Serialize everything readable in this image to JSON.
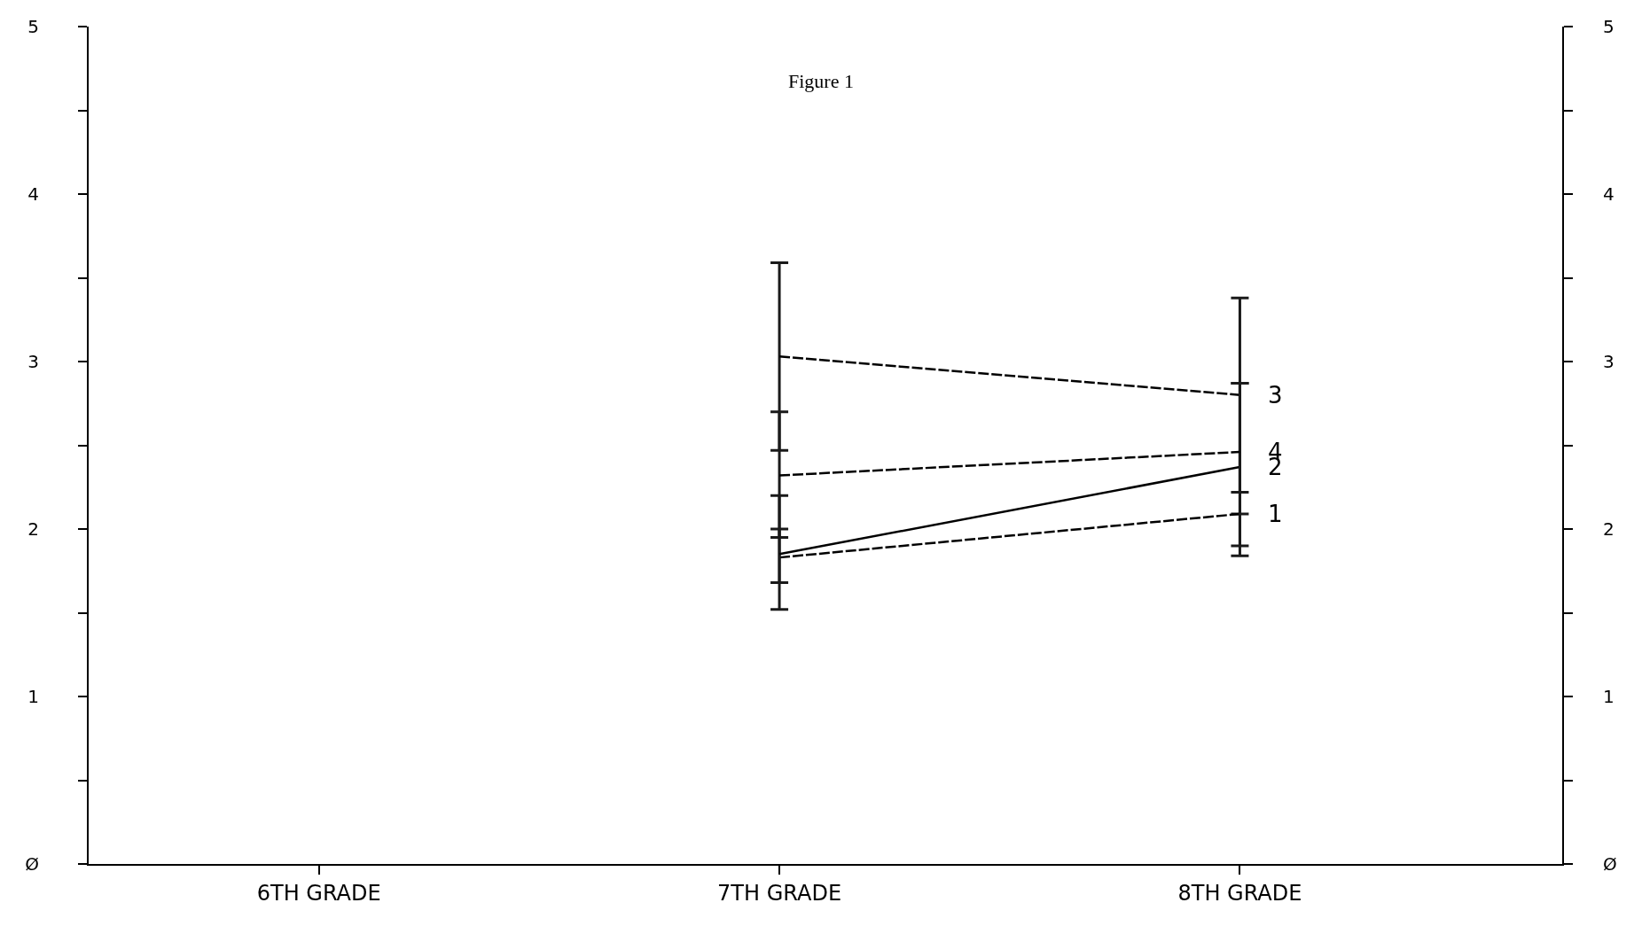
{
  "chart_data": {
    "type": "line",
    "title": "Figure 1",
    "categories": [
      "6TH GRADE",
      "7TH GRADE",
      "8TH GRADE"
    ],
    "series": [
      {
        "name": "1",
        "color": "#000000",
        "line_style": "dashed",
        "values": [
          null,
          1.83,
          2.09
        ],
        "errors": [
          null,
          [
            1.68,
            2.0
          ],
          null
        ]
      },
      {
        "name": "2",
        "color": "#000000",
        "line_style": "solid",
        "values": [
          null,
          1.85,
          2.37
        ],
        "errors": [
          null,
          [
            1.52,
            2.2
          ],
          [
            1.84,
            2.87
          ]
        ]
      },
      {
        "name": "3",
        "color": "#000000",
        "line_style": "dashed",
        "values": [
          null,
          3.03,
          2.8
        ],
        "errors": [
          null,
          [
            2.47,
            3.59
          ],
          [
            2.22,
            3.38
          ]
        ]
      },
      {
        "name": "4",
        "color": "#000000",
        "line_style": "dashed",
        "values": [
          null,
          2.32,
          2.46
        ],
        "errors": [
          null,
          [
            1.95,
            2.7
          ],
          [
            1.9,
            2.87
          ]
        ]
      }
    ],
    "ylim": [
      0,
      5
    ],
    "yticks": [
      {
        "value": 0,
        "label": "Ø"
      },
      {
        "value": 0.5,
        "label": null
      },
      1,
      {
        "value": 1.5,
        "label": null
      },
      2,
      {
        "value": 2.5,
        "label": null
      },
      3,
      {
        "value": 3.5,
        "label": null
      },
      4,
      {
        "value": 4.5,
        "label": null
      },
      5
    ],
    "y2lim": [
      0,
      5
    ],
    "y2ticks": [
      {
        "value": 0,
        "label": "Ø"
      },
      {
        "value": 0.5,
        "label": null
      },
      1,
      {
        "value": 1.5,
        "label": null
      },
      2,
      {
        "value": 2.5,
        "label": null
      },
      3,
      {
        "value": 3.5,
        "label": null
      },
      4,
      {
        "value": 4.5,
        "label": null
      },
      5
    ],
    "legend": false,
    "marker": "none"
  }
}
